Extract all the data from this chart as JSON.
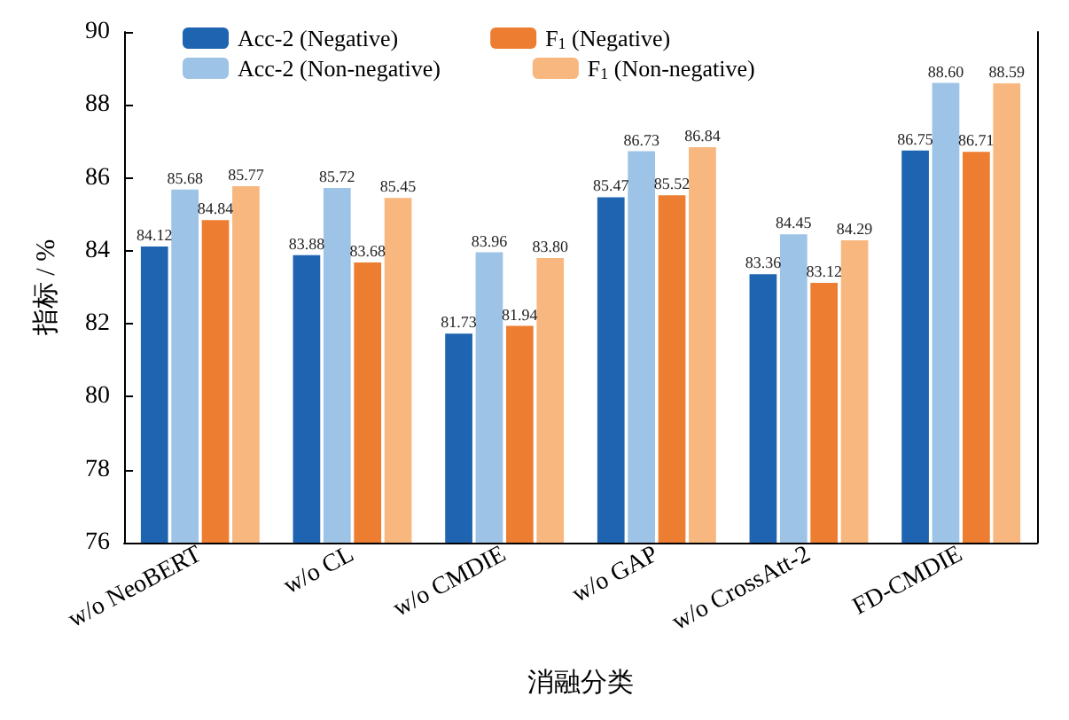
{
  "chart_data": {
    "type": "bar",
    "xlabel": "消融分类",
    "ylabel": "指标 / %",
    "categories": [
      "w/o NeoBERT",
      "w/o CL",
      "w/o CMDIE",
      "w/o GAP",
      "w/o CrossAtt-2",
      "FD-CMDIE"
    ],
    "series": [
      {
        "name": "Acc-2 (Negative)",
        "color": "#1f64b0",
        "values": [
          84.12,
          83.88,
          81.73,
          85.47,
          83.36,
          86.75
        ],
        "value_labels": [
          "84.12",
          "83.88",
          "81.73",
          "85.47",
          "83.36",
          "86.75"
        ]
      },
      {
        "name": "Acc-2 (Non-negative)",
        "color": "#9dc3e6",
        "values": [
          85.68,
          85.72,
          83.96,
          86.73,
          84.45,
          88.6
        ],
        "value_labels": [
          "85.68",
          "85.72",
          "83.96",
          "86.73",
          "84.45",
          "88.60"
        ]
      },
      {
        "name": "F$_{1}$ (Negative)",
        "color": "#ed7d31",
        "values": [
          84.84,
          83.68,
          81.94,
          85.52,
          83.12,
          86.71
        ],
        "value_labels": [
          "84.84",
          "83.68",
          "81.94",
          "85.52",
          "83.12",
          "86.71"
        ]
      },
      {
        "name": "F$_{1}$ (Non-negative)",
        "color": "#f8b77e",
        "values": [
          85.77,
          85.45,
          83.8,
          86.84,
          84.29,
          88.59
        ],
        "value_labels": [
          "85.77",
          "85.45",
          "83.80",
          "86.84",
          "84.29",
          "88.59"
        ]
      }
    ],
    "ylim": [
      76,
      90
    ],
    "yticks": [
      76,
      78,
      80,
      82,
      84,
      86,
      88,
      90
    ],
    "legend": "top",
    "grid": false
  }
}
